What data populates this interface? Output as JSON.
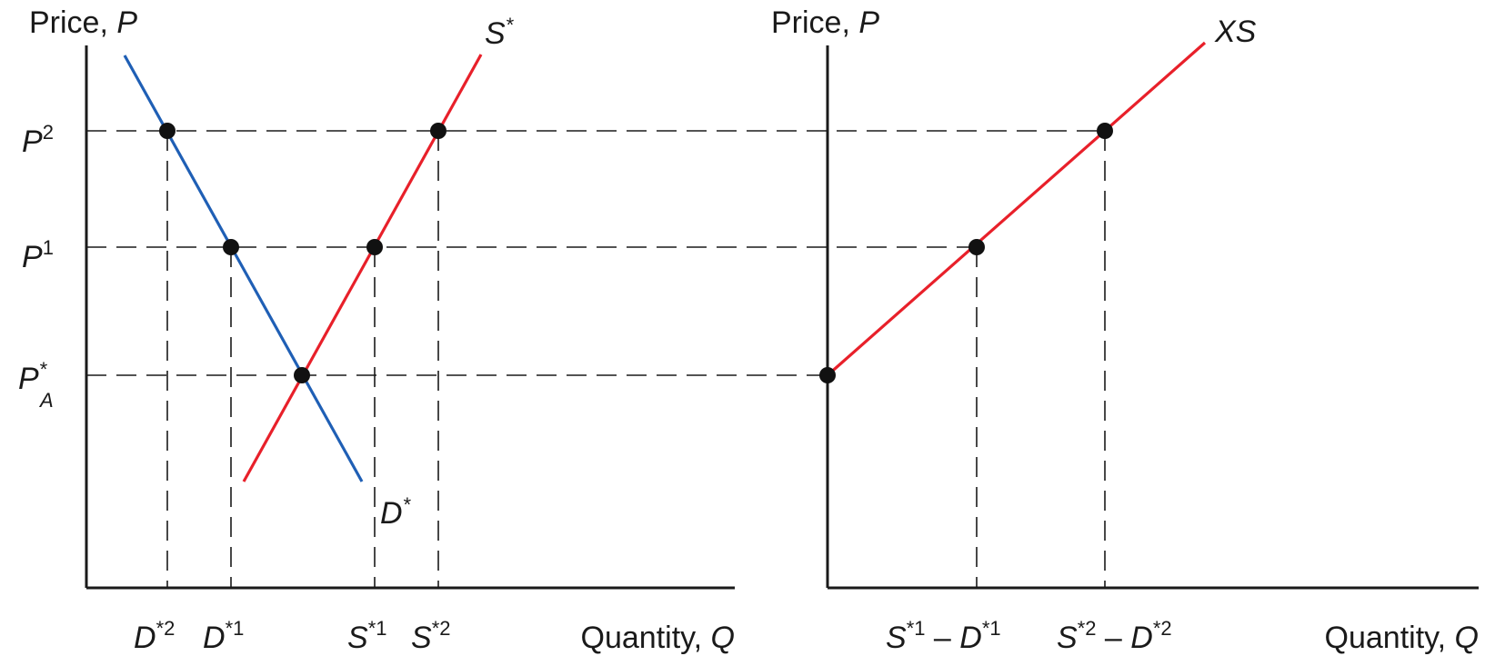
{
  "colors": {
    "supply": "#e8202a",
    "demand": "#1f5fb5",
    "ink": "#1a1a1a"
  },
  "left_panel": {
    "y_axis_title": {
      "text": "Price, ",
      "var": "P"
    },
    "x_axis_title": {
      "text": "Quantity, ",
      "var": "Q"
    },
    "supply_label": {
      "base": "S",
      "sup": "*"
    },
    "demand_label": {
      "base": "D",
      "sup": "*"
    },
    "price_labels": [
      {
        "base": "P",
        "sup": "2",
        "sub": ""
      },
      {
        "base": "P",
        "sup": "1",
        "sub": ""
      },
      {
        "base": "P",
        "sup": "*",
        "sub": "A"
      }
    ],
    "quantity_labels": [
      {
        "base": "D",
        "sup": "*2"
      },
      {
        "base": "D",
        "sup": "*1"
      },
      {
        "base": "S",
        "sup": "*1"
      },
      {
        "base": "S",
        "sup": "*2"
      }
    ]
  },
  "right_panel": {
    "y_axis_title": {
      "text": "Price, ",
      "var": "P"
    },
    "x_axis_title": {
      "text": "Quantity, ",
      "var": "Q"
    },
    "curve_label": "XS",
    "quantity_labels": [
      {
        "a": "S",
        "a_sup": "*1",
        "minus": " – ",
        "b": "D",
        "b_sup": "*1"
      },
      {
        "a": "S",
        "a_sup": "*2",
        "minus": " – ",
        "b": "D",
        "b_sup": "*2"
      }
    ]
  }
}
